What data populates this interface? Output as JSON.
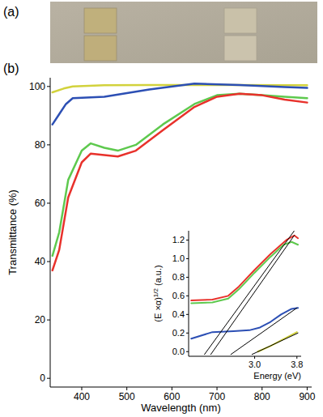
{
  "photo": {
    "label": "(a)"
  },
  "chart_data": [
    {
      "type": "line",
      "panel_label": "(b)",
      "xlabel": "Wavelength (nm)",
      "ylabel": "Transmittance (%)",
      "xlim": [
        330,
        910
      ],
      "ylim": [
        -3,
        103
      ],
      "xticks": [
        400,
        500,
        600,
        700,
        800,
        900
      ],
      "yticks": [
        0,
        20,
        40,
        60,
        80,
        100
      ],
      "series": [
        {
          "color": "#d2d23c",
          "x": [
            335,
            360,
            380,
            450,
            550,
            650,
            750,
            850,
            900
          ],
          "values": [
            98,
            99.3,
            100,
            100.4,
            100.5,
            100.5,
            100.5,
            100.4,
            100.4
          ]
        },
        {
          "color": "#2c4fb4",
          "x": [
            335,
            350,
            365,
            380,
            450,
            550,
            650,
            750,
            850,
            900
          ],
          "values": [
            87,
            90.5,
            94,
            96,
            96.5,
            99,
            101,
            100.5,
            99.8,
            99.5
          ]
        },
        {
          "color": "#5ec94e",
          "x": [
            335,
            350,
            370,
            400,
            420,
            450,
            480,
            520,
            580,
            650,
            700,
            750,
            800,
            850,
            900
          ],
          "values": [
            42,
            50,
            68,
            78,
            80.5,
            79,
            78,
            80,
            87,
            94,
            97,
            97.5,
            97,
            96.5,
            96
          ]
        },
        {
          "color": "#e8312b",
          "x": [
            335,
            350,
            370,
            400,
            420,
            450,
            480,
            520,
            580,
            650,
            700,
            750,
            800,
            850,
            900
          ],
          "values": [
            37,
            44,
            62,
            74,
            77,
            76.5,
            76,
            78,
            85,
            93,
            96.5,
            97.5,
            97,
            95.5,
            94.5
          ]
        }
      ]
    },
    {
      "type": "line",
      "xlabel": "Energy (eV)",
      "ylabel": "(E ×α)",
      "ylabel_superscript": "1/2",
      "ylabel_unit": "(a.u.)",
      "xlim": [
        1.75,
        3.88
      ],
      "ylim": [
        -0.05,
        1.3
      ],
      "xticks": [
        {
          "value": 3.0,
          "label": "3.0"
        },
        3.8
      ],
      "yticks": [
        {
          "value": 0,
          "label": "0.0"
        },
        0.2,
        0.4,
        0.6,
        0.8,
        {
          "value": 1,
          "label": "1.0"
        },
        1.2
      ],
      "series": [
        {
          "color": "#e8312b",
          "x": [
            1.8,
            2.2,
            2.5,
            2.7,
            3.0,
            3.3,
            3.6,
            3.75,
            3.82
          ],
          "values": [
            0.55,
            0.56,
            0.6,
            0.7,
            0.88,
            1.05,
            1.2,
            1.25,
            1.22
          ]
        },
        {
          "color": "#5ec94e",
          "x": [
            1.8,
            2.2,
            2.5,
            2.7,
            3.0,
            3.3,
            3.55,
            3.7,
            3.82
          ],
          "values": [
            0.52,
            0.53,
            0.57,
            0.67,
            0.85,
            1.02,
            1.15,
            1.18,
            1.15
          ]
        },
        {
          "color": "#2c4fb4",
          "x": [
            1.8,
            2.2,
            2.6,
            2.9,
            3.1,
            3.3,
            3.5,
            3.7,
            3.82
          ],
          "values": [
            0.14,
            0.21,
            0.22,
            0.23,
            0.26,
            0.32,
            0.4,
            0.46,
            0.47
          ]
        },
        {
          "color": "#d2d23c",
          "x": [
            3.06,
            3.3,
            3.5,
            3.7,
            3.8
          ],
          "values": [
            0.0,
            0.06,
            0.12,
            0.18,
            0.21
          ]
        },
        {
          "color": "#000000",
          "x": [
            2.05,
            3.75
          ],
          "values": [
            -0.03,
            1.3
          ]
        },
        {
          "color": "#000000",
          "x": [
            2.17,
            3.75
          ],
          "values": [
            -0.03,
            1.25
          ]
        },
        {
          "color": "#000000",
          "x": [
            2.55,
            3.8
          ],
          "values": [
            -0.03,
            0.47
          ]
        },
        {
          "color": "#000000",
          "x": [
            2.95,
            3.82
          ],
          "values": [
            -0.03,
            0.2
          ]
        }
      ]
    }
  ]
}
